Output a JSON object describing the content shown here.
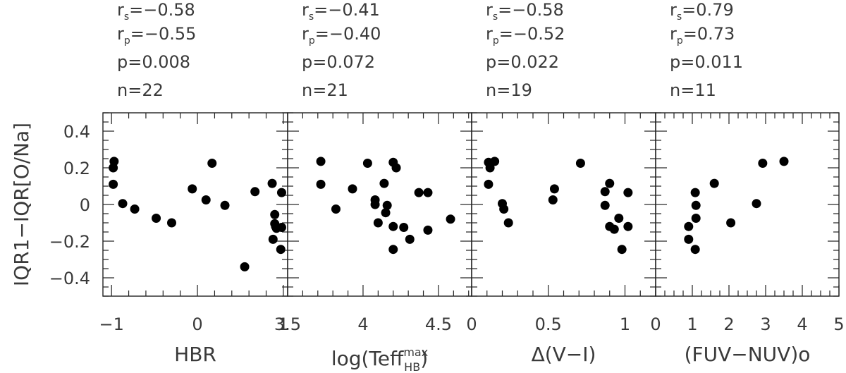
{
  "y_axis": {
    "label": "IQR1−IQR[O/Na]",
    "lim": [
      -0.5,
      0.5
    ],
    "ticks": [
      -0.4,
      -0.2,
      0,
      0.2,
      0.4
    ],
    "tick_labels": [
      "−0.4",
      "−0.2",
      "0",
      "0.2",
      "0.4"
    ],
    "minor_step": 0.05
  },
  "chart_data": [
    {
      "type": "scatter",
      "xlabel": "HBR",
      "xlim": [
        -1.1,
        1.05
      ],
      "xticks": [
        -1,
        0,
        1
      ],
      "xtick_labels": [
        "−1",
        "0",
        "1"
      ],
      "xminor_step": 0.2,
      "stats": {
        "rs": "−0.58",
        "rp": "−0.55",
        "p": "0.008",
        "n": "22"
      },
      "points": [
        {
          "x": -0.97,
          "y": 0.235
        },
        {
          "x": -0.98,
          "y": 0.2
        },
        {
          "x": -0.98,
          "y": 0.11
        },
        {
          "x": -0.87,
          "y": 0.005
        },
        {
          "x": -0.73,
          "y": -0.025
        },
        {
          "x": -0.48,
          "y": -0.075
        },
        {
          "x": -0.3,
          "y": -0.1
        },
        {
          "x": -0.06,
          "y": 0.085
        },
        {
          "x": 0.1,
          "y": 0.025
        },
        {
          "x": 0.17,
          "y": 0.225
        },
        {
          "x": 0.32,
          "y": -0.005
        },
        {
          "x": 0.55,
          "y": -0.34
        },
        {
          "x": 0.67,
          "y": 0.07
        },
        {
          "x": 0.87,
          "y": 0.115
        },
        {
          "x": 0.9,
          "y": -0.055
        },
        {
          "x": 0.9,
          "y": -0.105
        },
        {
          "x": 0.92,
          "y": -0.13
        },
        {
          "x": 0.88,
          "y": -0.19
        },
        {
          "x": 0.98,
          "y": 0.065
        },
        {
          "x": 0.98,
          "y": -0.125
        },
        {
          "x": 0.97,
          "y": -0.245
        },
        {
          "x": 0.91,
          "y": -0.12
        }
      ]
    },
    {
      "type": "scatter",
      "xlabel": "log(Teff",
      "xlabel_sup": "max",
      "xlabel_sub": "HB",
      "xlabel_close": ")",
      "xlim": [
        3.5,
        4.72
      ],
      "xticks": [
        3.5,
        4,
        4.5
      ],
      "xtick_labels": [
        "3.5",
        "4",
        "4.5"
      ],
      "xminor_step": 0.1,
      "stats": {
        "rs": "−0.41",
        "rp": "−0.40",
        "p": "0.072",
        "n": "21"
      },
      "points": [
        {
          "x": 3.72,
          "y": 0.235
        },
        {
          "x": 3.72,
          "y": 0.11
        },
        {
          "x": 3.82,
          "y": -0.025
        },
        {
          "x": 3.93,
          "y": 0.085
        },
        {
          "x": 4.03,
          "y": 0.225
        },
        {
          "x": 4.08,
          "y": 0.025
        },
        {
          "x": 4.08,
          "y": 0.0
        },
        {
          "x": 4.1,
          "y": -0.1
        },
        {
          "x": 4.14,
          "y": 0.115
        },
        {
          "x": 4.15,
          "y": -0.045
        },
        {
          "x": 4.16,
          "y": -0.005
        },
        {
          "x": 4.2,
          "y": 0.23
        },
        {
          "x": 4.22,
          "y": 0.2
        },
        {
          "x": 4.2,
          "y": -0.12
        },
        {
          "x": 4.2,
          "y": -0.245
        },
        {
          "x": 4.27,
          "y": -0.125
        },
        {
          "x": 4.31,
          "y": -0.19
        },
        {
          "x": 4.37,
          "y": 0.065
        },
        {
          "x": 4.43,
          "y": 0.065
        },
        {
          "x": 4.43,
          "y": -0.14
        },
        {
          "x": 4.58,
          "y": -0.08
        }
      ]
    },
    {
      "type": "scatter",
      "xlabel": "Δ(V−I)",
      "xlim": [
        0,
        1.2
      ],
      "xticks": [
        0,
        0.5,
        1
      ],
      "xtick_labels": [
        "0",
        "0.5",
        "1"
      ],
      "xminor_step": 0.1,
      "stats": {
        "rs": "−0.58",
        "rp": "−0.52",
        "p": "0.022",
        "n": "19"
      },
      "points": [
        {
          "x": 0.11,
          "y": 0.23
        },
        {
          "x": 0.12,
          "y": 0.2
        },
        {
          "x": 0.15,
          "y": 0.235
        },
        {
          "x": 0.11,
          "y": 0.11
        },
        {
          "x": 0.2,
          "y": 0.005
        },
        {
          "x": 0.21,
          "y": -0.025
        },
        {
          "x": 0.24,
          "y": -0.1
        },
        {
          "x": 0.54,
          "y": 0.085
        },
        {
          "x": 0.53,
          "y": 0.025
        },
        {
          "x": 0.71,
          "y": 0.225
        },
        {
          "x": 0.87,
          "y": 0.07
        },
        {
          "x": 0.9,
          "y": 0.115
        },
        {
          "x": 0.87,
          "y": -0.005
        },
        {
          "x": 0.9,
          "y": -0.12
        },
        {
          "x": 0.93,
          "y": -0.135
        },
        {
          "x": 0.96,
          "y": -0.075
        },
        {
          "x": 1.02,
          "y": 0.065
        },
        {
          "x": 1.02,
          "y": -0.12
        },
        {
          "x": 0.98,
          "y": -0.245
        }
      ]
    },
    {
      "type": "scatter",
      "xlabel": "(FUV−NUV)o",
      "xlim": [
        0,
        5
      ],
      "xticks": [
        0,
        1,
        2,
        3,
        4,
        5
      ],
      "xtick_labels": [
        "0",
        "1",
        "2",
        "3",
        "4",
        "5"
      ],
      "xminor_step": 0.25,
      "stats": {
        "rs": "0.79",
        "rp": "0.73",
        "p": "0.011",
        "n": "11"
      },
      "points": [
        {
          "x": 0.9,
          "y": -0.12
        },
        {
          "x": 0.9,
          "y": -0.19
        },
        {
          "x": 1.08,
          "y": 0.065
        },
        {
          "x": 1.1,
          "y": -0.005
        },
        {
          "x": 1.1,
          "y": -0.075
        },
        {
          "x": 1.08,
          "y": -0.245
        },
        {
          "x": 1.6,
          "y": 0.115
        },
        {
          "x": 2.05,
          "y": -0.1
        },
        {
          "x": 2.75,
          "y": 0.005
        },
        {
          "x": 2.92,
          "y": 0.225
        },
        {
          "x": 3.5,
          "y": 0.235
        }
      ]
    }
  ]
}
